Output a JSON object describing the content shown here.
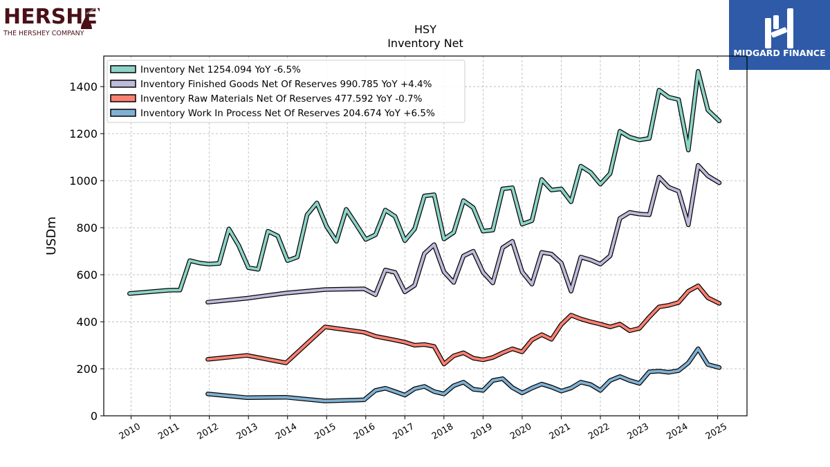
{
  "brand": {
    "company_wordmark": "HERSHEY",
    "company_sub": "THE HERSHEY COMPANY",
    "company_color": "#4a1018",
    "partner_name": "MIDGARD FINANCE",
    "partner_bg": "#2e5aa8"
  },
  "chart_data": {
    "type": "line",
    "title": "HSY",
    "subtitle": "Inventory Net",
    "ylabel": "USDm",
    "xlabel": "",
    "ylim": [
      0,
      1530
    ],
    "xlim": [
      2009.3,
      2025.75
    ],
    "yticks": [
      0,
      200,
      400,
      600,
      800,
      1000,
      1200,
      1400
    ],
    "xticks": [
      "2010",
      "2011",
      "2012",
      "2013",
      "2014",
      "2015",
      "2016",
      "2017",
      "2018",
      "2019",
      "2020",
      "2021",
      "2022",
      "2023",
      "2024",
      "2025"
    ],
    "grid": true,
    "legend_position": "top-left",
    "series": [
      {
        "name": "Inventory Net  1254.094 YoY -6.5%",
        "color": "#8dd3c7",
        "points": [
          [
            2009.96,
            520
          ],
          [
            2010.96,
            534
          ],
          [
            2011.25,
            535
          ],
          [
            2011.5,
            660
          ],
          [
            2011.75,
            650
          ],
          [
            2012,
            645
          ],
          [
            2012.25,
            648
          ],
          [
            2012.5,
            795
          ],
          [
            2012.75,
            725
          ],
          [
            2013,
            630
          ],
          [
            2013.25,
            623
          ],
          [
            2013.5,
            785
          ],
          [
            2013.75,
            765
          ],
          [
            2014,
            660
          ],
          [
            2014.25,
            675
          ],
          [
            2014.5,
            855
          ],
          [
            2014.75,
            905
          ],
          [
            2015,
            805
          ],
          [
            2015.25,
            742
          ],
          [
            2015.5,
            878
          ],
          [
            2015.75,
            815
          ],
          [
            2016,
            750
          ],
          [
            2016.25,
            770
          ],
          [
            2016.5,
            875
          ],
          [
            2016.75,
            848
          ],
          [
            2017,
            745
          ],
          [
            2017.25,
            795
          ],
          [
            2017.5,
            935
          ],
          [
            2017.75,
            940
          ],
          [
            2018,
            752
          ],
          [
            2018.25,
            780
          ],
          [
            2018.5,
            915
          ],
          [
            2018.75,
            885
          ],
          [
            2019,
            785
          ],
          [
            2019.25,
            790
          ],
          [
            2019.5,
            965
          ],
          [
            2019.75,
            970
          ],
          [
            2020,
            815
          ],
          [
            2020.25,
            830
          ],
          [
            2020.5,
            1005
          ],
          [
            2020.75,
            960
          ],
          [
            2021,
            965
          ],
          [
            2021.25,
            910
          ],
          [
            2021.5,
            1062
          ],
          [
            2021.75,
            1035
          ],
          [
            2022,
            985
          ],
          [
            2022.25,
            1030
          ],
          [
            2022.5,
            1210
          ],
          [
            2022.75,
            1185
          ],
          [
            2023,
            1173
          ],
          [
            2023.25,
            1180
          ],
          [
            2023.5,
            1385
          ],
          [
            2023.75,
            1355
          ],
          [
            2024,
            1345
          ],
          [
            2024.25,
            1130
          ],
          [
            2024.5,
            1465
          ],
          [
            2024.75,
            1300
          ],
          [
            2025.04,
            1254
          ]
        ]
      },
      {
        "name": "Inventory Finished Goods Net Of Reserves  990.785 YoY +4.4%",
        "color": "#bebada",
        "points": [
          [
            2011.96,
            483
          ],
          [
            2012.96,
            500
          ],
          [
            2013.96,
            522
          ],
          [
            2014.96,
            537
          ],
          [
            2015.96,
            540
          ],
          [
            2016.25,
            515
          ],
          [
            2016.5,
            620
          ],
          [
            2016.75,
            610
          ],
          [
            2017,
            527
          ],
          [
            2017.25,
            555
          ],
          [
            2017.5,
            690
          ],
          [
            2017.75,
            728
          ],
          [
            2018,
            612
          ],
          [
            2018.25,
            567
          ],
          [
            2018.5,
            680
          ],
          [
            2018.75,
            700
          ],
          [
            2019,
            610
          ],
          [
            2019.25,
            565
          ],
          [
            2019.5,
            715
          ],
          [
            2019.75,
            742
          ],
          [
            2020,
            612
          ],
          [
            2020.25,
            560
          ],
          [
            2020.5,
            695
          ],
          [
            2020.75,
            688
          ],
          [
            2021,
            650
          ],
          [
            2021.25,
            530
          ],
          [
            2021.5,
            675
          ],
          [
            2021.75,
            663
          ],
          [
            2022,
            645
          ],
          [
            2022.25,
            680
          ],
          [
            2022.5,
            840
          ],
          [
            2022.75,
            865
          ],
          [
            2023,
            858
          ],
          [
            2023.25,
            855
          ],
          [
            2023.5,
            1015
          ],
          [
            2023.75,
            972
          ],
          [
            2024,
            955
          ],
          [
            2024.25,
            812
          ],
          [
            2024.5,
            1065
          ],
          [
            2024.75,
            1020
          ],
          [
            2025.04,
            991
          ]
        ]
      },
      {
        "name": "Inventory Raw Materials Net Of Reserves  477.592 YoY -0.7%",
        "color": "#fb8072",
        "points": [
          [
            2011.96,
            240
          ],
          [
            2012.96,
            257
          ],
          [
            2013.96,
            225
          ],
          [
            2014.96,
            378
          ],
          [
            2015.96,
            355
          ],
          [
            2016.25,
            338
          ],
          [
            2016.5,
            330
          ],
          [
            2016.75,
            322
          ],
          [
            2017,
            313
          ],
          [
            2017.25,
            300
          ],
          [
            2017.5,
            303
          ],
          [
            2017.75,
            295
          ],
          [
            2018,
            220
          ],
          [
            2018.25,
            255
          ],
          [
            2018.5,
            268
          ],
          [
            2018.75,
            245
          ],
          [
            2019,
            238
          ],
          [
            2019.25,
            248
          ],
          [
            2019.5,
            268
          ],
          [
            2019.75,
            285
          ],
          [
            2020,
            272
          ],
          [
            2020.25,
            323
          ],
          [
            2020.5,
            345
          ],
          [
            2020.75,
            325
          ],
          [
            2021,
            388
          ],
          [
            2021.25,
            428
          ],
          [
            2021.5,
            412
          ],
          [
            2021.75,
            400
          ],
          [
            2022,
            390
          ],
          [
            2022.25,
            378
          ],
          [
            2022.5,
            390
          ],
          [
            2022.75,
            362
          ],
          [
            2023,
            372
          ],
          [
            2023.25,
            420
          ],
          [
            2023.5,
            463
          ],
          [
            2023.75,
            470
          ],
          [
            2024,
            482
          ],
          [
            2024.25,
            530
          ],
          [
            2024.5,
            553
          ],
          [
            2024.75,
            502
          ],
          [
            2025.04,
            478
          ]
        ]
      },
      {
        "name": "Inventory Work In Process Net Of Reserves  204.674 YoY +6.5%",
        "color": "#80b1d3",
        "points": [
          [
            2011.96,
            93
          ],
          [
            2012.96,
            77
          ],
          [
            2013.96,
            79
          ],
          [
            2014.96,
            63
          ],
          [
            2015.96,
            68
          ],
          [
            2016.25,
            108
          ],
          [
            2016.5,
            117
          ],
          [
            2016.75,
            103
          ],
          [
            2017,
            88
          ],
          [
            2017.25,
            115
          ],
          [
            2017.5,
            125
          ],
          [
            2017.75,
            103
          ],
          [
            2018,
            93
          ],
          [
            2018.25,
            128
          ],
          [
            2018.5,
            143
          ],
          [
            2018.75,
            113
          ],
          [
            2019,
            108
          ],
          [
            2019.25,
            150
          ],
          [
            2019.5,
            158
          ],
          [
            2019.75,
            120
          ],
          [
            2020,
            97
          ],
          [
            2020.25,
            118
          ],
          [
            2020.5,
            135
          ],
          [
            2020.75,
            122
          ],
          [
            2021,
            105
          ],
          [
            2021.25,
            118
          ],
          [
            2021.5,
            143
          ],
          [
            2021.75,
            133
          ],
          [
            2022,
            108
          ],
          [
            2022.25,
            150
          ],
          [
            2022.5,
            167
          ],
          [
            2022.75,
            150
          ],
          [
            2023,
            138
          ],
          [
            2023.25,
            187
          ],
          [
            2023.5,
            190
          ],
          [
            2023.75,
            185
          ],
          [
            2024,
            192
          ],
          [
            2024.25,
            225
          ],
          [
            2024.5,
            285
          ],
          [
            2024.75,
            218
          ],
          [
            2025.04,
            205
          ]
        ]
      }
    ]
  }
}
